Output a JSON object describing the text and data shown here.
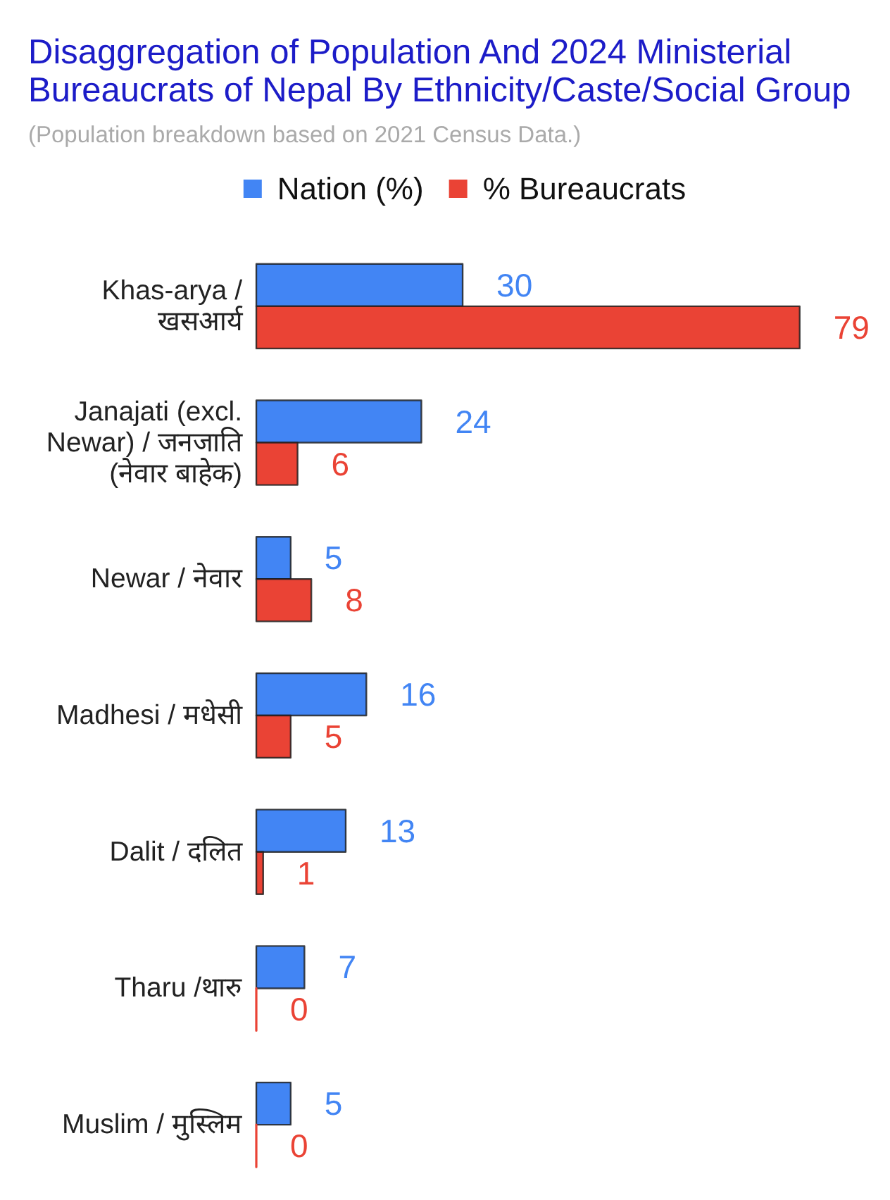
{
  "chart_data": {
    "type": "bar",
    "orientation": "horizontal",
    "title": "Disaggregation of Population And 2024 Ministerial Bureaucrats of Nepal By Ethnicity/Caste/Social Group",
    "subtitle": "(Population breakdown based on 2021 Census Data.)",
    "categories": [
      "Khas-arya / खसआर्य",
      "Janajati (excl. Newar) / जनजाति (नेवार बाहेक)",
      "Newar / नेवार",
      "Madhesi / मधेसी",
      "Dalit / दलित",
      "Tharu /थारु",
      "Muslim / मुस्लिम"
    ],
    "series": [
      {
        "name": "Nation (%)",
        "color": "#4285f4",
        "values": [
          30,
          24,
          5,
          16,
          13,
          7,
          5
        ]
      },
      {
        "name": "% Bureaucrats",
        "color": "#ea4335",
        "values": [
          79,
          6,
          8,
          5,
          1,
          0,
          0
        ]
      }
    ],
    "data_labels": true,
    "legend": "top",
    "tick_labels": "y"
  }
}
